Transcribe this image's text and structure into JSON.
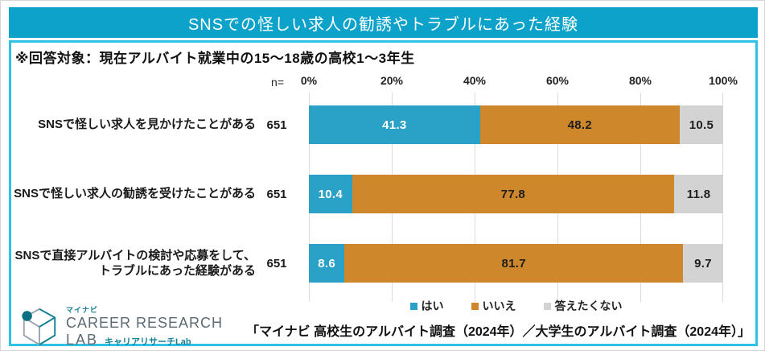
{
  "header": {
    "title": "SNSでの怪しい求人の勧誘やトラブルにあった経験"
  },
  "note": "※回答対象：現在アルバイト就業中の15～18歳の高校1～3年生",
  "axis": {
    "n_label": "n=",
    "ticks": [
      "0%",
      "20%",
      "40%",
      "60%",
      "80%",
      "100%"
    ]
  },
  "chart_data": {
    "type": "bar",
    "stacked": true,
    "orientation": "horizontal",
    "xlim": [
      0,
      100
    ],
    "grid": true,
    "legend_position": "bottom",
    "categories": [
      [
        "SNSで怪しい求人を見かけたことがある"
      ],
      [
        "SNSで怪しい求人の勧誘を受けたことがある"
      ],
      [
        "SNSで直接アルバイトの検討や応募をして、",
        "トラブルにあった経験がある"
      ]
    ],
    "n_values": [
      "651",
      "651",
      "651"
    ],
    "series": [
      {
        "name": "はい",
        "color": "#2aa2c8",
        "value_color": "#ffffff",
        "values": [
          41.3,
          10.4,
          8.6
        ]
      },
      {
        "name": "いいえ",
        "color": "#ce882b",
        "value_color": "#1e1e1e",
        "values": [
          48.2,
          77.8,
          81.7
        ]
      },
      {
        "name": "答えたくない",
        "color": "#d3d3d3",
        "value_color": "#1e1e1e",
        "values": [
          10.5,
          11.8,
          9.7
        ]
      }
    ]
  },
  "footer": {
    "logo": {
      "brand": "マイナビ",
      "line1": "CAREER RESEARCH",
      "line2": "LAB",
      "subtitle": "キャリアリサーチLab"
    },
    "source": "「マイナビ 高校生のアルバイト調査（2024年）／大学生のアルバイト調査（2024年）」"
  },
  "colors": {
    "header_bg": "#0ca2c9",
    "header_text": "#ffffff",
    "frame_border": "#2fc2e5",
    "grid_line": "#dcdcdc",
    "logo_teal": "#157f93",
    "logo_gray": "#5c6a73"
  }
}
